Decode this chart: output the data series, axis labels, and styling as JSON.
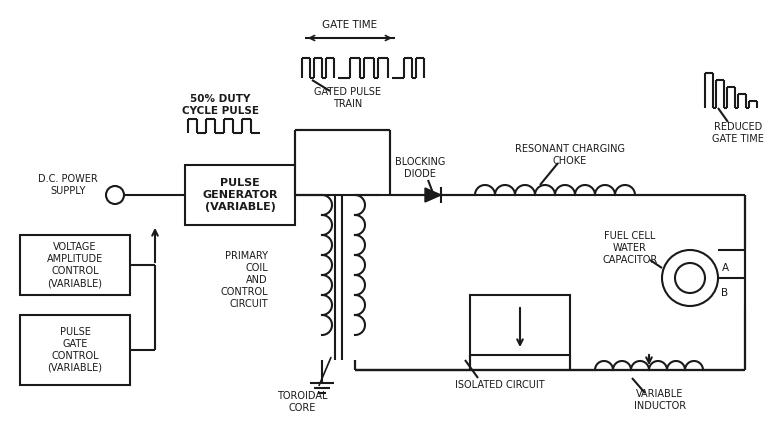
{
  "bg_color": "#ffffff",
  "line_color": "#1a1a1a",
  "text_color": "#1a1a1a",
  "figsize": [
    7.8,
    4.38
  ],
  "dpi": 100,
  "labels": {
    "dc_power": "D.C. POWER\nSUPPLY",
    "pulse_gen": "PULSE\nGENERATOR\n(VARIABLE)",
    "voltage_amp": "VOLTAGE\nAMPLITUDE\nCONTROL\n(VARIABLE)",
    "pulse_gate": "PULSE\nGATE\nCONTROL\n(VARIABLE)",
    "gate_time": "GATE TIME",
    "duty_cycle": "50% DUTY\nCYCLE PULSE",
    "gated_pulse": "GATED PULSE\nTRAIN",
    "blocking_diode": "BLOCKING\nDIODE",
    "resonant": "RESONANT CHARGING\nCHOKE",
    "fuel_cell": "FUEL CELL\nWATER\nCAPACITOR",
    "reduced_gate": "REDUCED\nGATE TIME",
    "primary_coil": "PRIMARY\nCOIL\nAND\nCONTROL\nCIRCUIT",
    "toroidal": "TOROIDAL\nCORE",
    "isolated": "ISOLATED CIRCUIT",
    "variable_ind": "VARIABLE\nINDUCTOR"
  }
}
